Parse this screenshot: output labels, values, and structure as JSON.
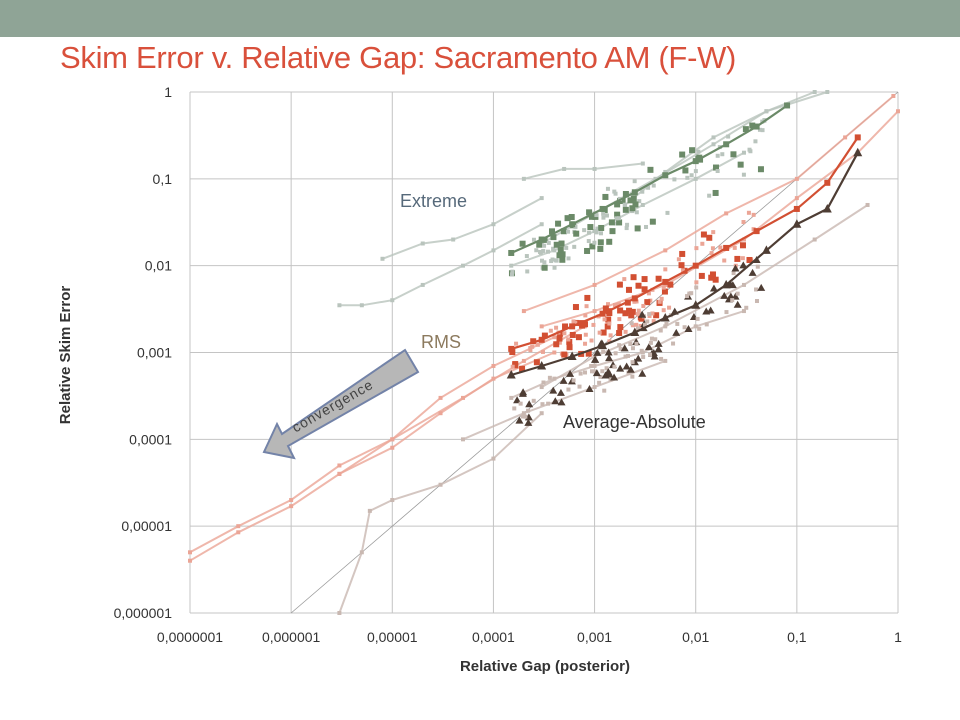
{
  "slide": {
    "title": "Skim Error v. Relative Gap: Sacramento AM (F-W)"
  },
  "colors": {
    "top_bar": "#8fa496",
    "title": "#d9503b",
    "extreme": "#6b8a68",
    "extreme_light": "#b9c4bd",
    "rms": "#d24f32",
    "rms_light": "#eba596",
    "average_absolute": "#4e3d34",
    "average_absolute_light": "#c9b8b1",
    "arrow_fill": "#b7b7b7",
    "arrow_stroke": "#7383a8"
  },
  "chart_data": {
    "type": "scatter",
    "xlabel": "Relative Gap (posterior)",
    "ylabel": "Relative Skim Error",
    "xscale": "log",
    "yscale": "log",
    "xlim": [
      1e-07,
      1
    ],
    "ylim": [
      1e-06,
      1
    ],
    "grid": true,
    "legend": "none",
    "x_ticks": [
      "0,0000001",
      "0,000001",
      "0,00001",
      "0,0001",
      "0,001",
      "0,01",
      "0,1",
      "1"
    ],
    "y_ticks": [
      "0,000001",
      "0,00001",
      "0,0001",
      "0,001",
      "0,01",
      "0,1",
      "1"
    ],
    "reference_line": "y = x",
    "annotations": {
      "extreme": "Extreme",
      "rms": "RMS",
      "average_absolute": "Average-Absolute",
      "arrow": "convergence"
    },
    "series": [
      {
        "group": "extreme",
        "highlight": true,
        "x": [
          0.00015,
          0.0003,
          0.0006,
          0.0012,
          0.0025,
          0.005,
          0.01,
          0.02,
          0.04,
          0.08
        ],
        "y": [
          0.014,
          0.02,
          0.03,
          0.045,
          0.07,
          0.11,
          0.16,
          0.25,
          0.4,
          0.7
        ]
      },
      {
        "group": "extreme",
        "x": [
          3e-06,
          5e-06,
          1e-05,
          2e-05,
          5e-05,
          0.0001,
          0.0003
        ],
        "y": [
          0.0035,
          0.0035,
          0.004,
          0.006,
          0.01,
          0.015,
          0.03
        ]
      },
      {
        "group": "extreme",
        "x": [
          8e-06,
          2e-05,
          4e-05,
          0.0001,
          0.0003
        ],
        "y": [
          0.012,
          0.018,
          0.02,
          0.03,
          0.06
        ]
      },
      {
        "group": "extreme",
        "x": [
          0.0002,
          0.0005,
          0.001,
          0.003
        ],
        "y": [
          0.1,
          0.13,
          0.13,
          0.15
        ]
      },
      {
        "group": "extreme",
        "x": [
          0.00015,
          0.0004,
          0.001,
          0.003,
          0.01,
          0.03
        ],
        "y": [
          0.01,
          0.015,
          0.025,
          0.05,
          0.1,
          0.2
        ]
      },
      {
        "group": "extreme",
        "x": [
          0.0003,
          0.001,
          0.004,
          0.015,
          0.05,
          0.15
        ],
        "y": [
          0.018,
          0.04,
          0.1,
          0.25,
          0.6,
          1
        ]
      },
      {
        "group": "extreme",
        "x": [
          0.002,
          0.005,
          0.015,
          0.05,
          0.2
        ],
        "y": [
          0.05,
          0.12,
          0.3,
          0.6,
          1
        ]
      },
      {
        "group": "rms",
        "highlight": true,
        "x": [
          0.00015,
          0.0003,
          0.0006,
          0.0012,
          0.0025,
          0.005,
          0.01,
          0.02,
          0.04,
          0.1,
          0.2,
          0.4
        ],
        "y": [
          0.0011,
          0.0014,
          0.002,
          0.0028,
          0.0042,
          0.0065,
          0.01,
          0.016,
          0.025,
          0.045,
          0.09,
          0.3
        ]
      },
      {
        "group": "rms",
        "x": [
          1e-07,
          3e-07,
          1e-06,
          3e-06,
          1e-05,
          3e-05,
          0.0001,
          0.0004
        ],
        "y": [
          5e-06,
          1e-05,
          2e-05,
          5e-05,
          0.0001,
          0.0003,
          0.0007,
          0.0015
        ]
      },
      {
        "group": "rms",
        "x": [
          1e-07,
          3e-07,
          1e-06,
          3e-06,
          1e-05,
          3e-05,
          0.0001,
          0.0004
        ],
        "y": [
          4e-06,
          8.5e-06,
          1.7e-05,
          4e-05,
          8e-05,
          0.0002,
          0.0005,
          0.001
        ]
      },
      {
        "group": "rms",
        "x": [
          3e-06,
          1e-05,
          5e-05,
          0.0002,
          0.0008
        ],
        "y": [
          4e-05,
          0.0001,
          0.0003,
          0.0008,
          0.002
        ]
      },
      {
        "group": "rms",
        "x": [
          0.0002,
          0.001,
          0.005,
          0.02,
          0.1,
          0.3,
          0.9
        ],
        "y": [
          0.003,
          0.006,
          0.015,
          0.04,
          0.1,
          0.3,
          0.9
        ]
      },
      {
        "group": "rms",
        "x": [
          0.0003,
          0.001,
          0.005,
          0.03,
          0.1,
          0.4,
          1
        ],
        "y": [
          0.002,
          0.003,
          0.006,
          0.02,
          0.06,
          0.2,
          0.6
        ]
      },
      {
        "group": "average_absolute",
        "highlight": true,
        "x": [
          0.00015,
          0.0003,
          0.0006,
          0.0012,
          0.0025,
          0.005,
          0.01,
          0.02,
          0.05,
          0.1,
          0.2,
          0.4
        ],
        "y": [
          0.00055,
          0.0007,
          0.0009,
          0.0012,
          0.0017,
          0.0025,
          0.0035,
          0.006,
          0.015,
          0.03,
          0.045,
          0.2
        ]
      },
      {
        "group": "average_absolute",
        "x": [
          3e-06,
          5e-06,
          6e-06,
          1e-05,
          3e-05,
          0.0001,
          0.0003
        ],
        "y": [
          1e-06,
          5e-06,
          1.5e-05,
          2e-05,
          3e-05,
          6e-05,
          0.0002
        ]
      },
      {
        "group": "average_absolute",
        "x": [
          0.00015,
          0.0004,
          0.001,
          0.003,
          0.01,
          0.03
        ],
        "y": [
          0.0003,
          0.0005,
          0.0007,
          0.001,
          0.002,
          0.003
        ]
      },
      {
        "group": "average_absolute",
        "x": [
          0.0003,
          0.001,
          0.005,
          0.03,
          0.15,
          0.5
        ],
        "y": [
          0.0004,
          0.0009,
          0.002,
          0.006,
          0.02,
          0.05
        ]
      },
      {
        "group": "average_absolute",
        "x": [
          5e-05,
          0.0002,
          0.001,
          0.005
        ],
        "y": [
          0.0001,
          0.0002,
          0.0004,
          0.0008
        ]
      }
    ],
    "clusters": [
      {
        "group": "extreme",
        "x_range": [
          0.00015,
          0.003
        ],
        "y_range": [
          0.01,
          0.06
        ]
      },
      {
        "group": "extreme",
        "x_range": [
          0.0003,
          0.05
        ],
        "y_range": [
          0.015,
          0.3
        ]
      },
      {
        "group": "rms",
        "x_range": [
          0.00015,
          0.005
        ],
        "y_range": [
          0.0008,
          0.004
        ]
      },
      {
        "group": "rms",
        "x_range": [
          0.0005,
          0.05
        ],
        "y_range": [
          0.0015,
          0.03
        ]
      },
      {
        "group": "average_absolute",
        "x_range": [
          0.00015,
          0.005
        ],
        "y_range": [
          0.0002,
          0.0012
        ]
      },
      {
        "group": "average_absolute",
        "x_range": [
          0.001,
          0.05
        ],
        "y_range": [
          0.0008,
          0.008
        ]
      }
    ]
  }
}
